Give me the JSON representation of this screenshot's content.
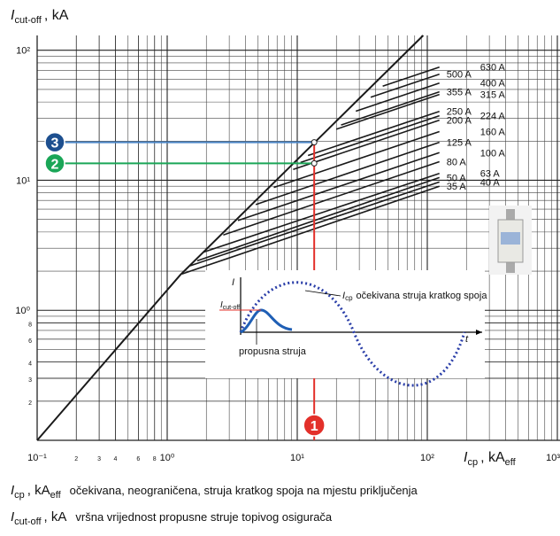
{
  "chart_data": {
    "type": "line",
    "log_x": true,
    "log_y": true,
    "grid": true,
    "minor_grid": true,
    "color": "#1a1a1a",
    "y_label": {
      "symbol": "I",
      "subscript": "cut-off",
      "unit": ", kA"
    },
    "x_label": {
      "symbol": "I",
      "subscript": "cp",
      "unit": ", kA",
      "unit_subscript": "eff"
    },
    "xlim": [
      0.1,
      1000
    ],
    "ylim": [
      0.1,
      130
    ],
    "xticks": [
      {
        "value": 0.1,
        "label": "10⁻¹"
      },
      {
        "value": 0.2,
        "label": "2"
      },
      {
        "value": 0.3,
        "label": "3"
      },
      {
        "value": 0.4,
        "label": "4"
      },
      {
        "value": 0.6,
        "label": "6"
      },
      {
        "value": 0.8,
        "label": "8"
      },
      {
        "value": 1,
        "label": "10⁰"
      },
      {
        "value": 10,
        "label": "10¹"
      },
      {
        "value": 100,
        "label": "10²"
      },
      {
        "value": 1000,
        "label": "10³"
      }
    ],
    "yticks": [
      {
        "value": 0.2,
        "label": "2"
      },
      {
        "value": 0.3,
        "label": "3"
      },
      {
        "value": 0.4,
        "label": "4"
      },
      {
        "value": 0.6,
        "label": "6"
      },
      {
        "value": 0.8,
        "label": "8"
      },
      {
        "value": 1,
        "label": "10⁰"
      },
      {
        "value": 10,
        "label": "10¹"
      },
      {
        "value": 100,
        "label": "10²"
      }
    ],
    "envelope": {
      "x": [
        0.1,
        1.26,
        93
      ],
      "values": [
        0.1,
        1.87,
        130
      ]
    },
    "series": [
      {
        "name": "630 A",
        "x": [
          45.4,
          124
        ],
        "values": [
          52.9,
          74.3
        ]
      },
      {
        "name": "500 A",
        "x": [
          36.7,
          124
        ],
        "values": [
          43.5,
          65.5
        ]
      },
      {
        "name": "400 A",
        "x": [
          28.2,
          124
        ],
        "values": [
          34.0,
          56.0
        ]
      },
      {
        "name": "355 A",
        "x": [
          21.7,
          124
        ],
        "values": [
          26.6,
          47.9
        ]
      },
      {
        "name": "315 A",
        "x": [
          20.0,
          124
        ],
        "values": [
          24.7,
          45.7
        ]
      },
      {
        "name": "250 A",
        "x": [
          12.1,
          124
        ],
        "values": [
          15.5,
          33.9
        ]
      },
      {
        "name": "224 A",
        "x": [
          10.6,
          124
        ],
        "values": [
          13.7,
          31.4
        ]
      },
      {
        "name": "200 A",
        "x": [
          9.3,
          124
        ],
        "values": [
          12.1,
          29.0
        ]
      },
      {
        "name": "160 A",
        "x": [
          6.6,
          124
        ],
        "values": [
          8.8,
          23.7
        ]
      },
      {
        "name": "125 A",
        "x": [
          4.8,
          124
        ],
        "values": [
          6.5,
          19.6
        ]
      },
      {
        "name": "100 A",
        "x": [
          3.5,
          124
        ],
        "values": [
          4.9,
          16.3
        ]
      },
      {
        "name": "80 A",
        "x": [
          2.7,
          124
        ],
        "values": [
          3.8,
          13.9
        ]
      },
      {
        "name": "63 A",
        "x": [
          1.9,
          124
        ],
        "values": [
          2.8,
          11.3
        ]
      },
      {
        "name": "50 A",
        "x": [
          1.7,
          124
        ],
        "values": [
          2.4,
          10.5
        ]
      },
      {
        "name": "40 A",
        "x": [
          1.5,
          124
        ],
        "values": [
          2.2,
          9.7
        ]
      },
      {
        "name": "35 A",
        "x": [
          1.3,
          124
        ],
        "values": [
          1.9,
          9.0
        ]
      }
    ],
    "guides": [
      {
        "label": "1",
        "x": 13.5,
        "color": "#e3302a",
        "line_color": "#e3302a"
      },
      {
        "label": "2",
        "y": 13.5,
        "color": "#1aa657",
        "line_color": "#1aa657"
      },
      {
        "label": "3",
        "y": 19.6,
        "color": "#1d4f8f",
        "line_color": "#4c87c7"
      }
    ],
    "inset": {
      "y_axis": "I",
      "x_axis": "t",
      "peak_label": {
        "symbol": "I",
        "subscript": "cut-off"
      },
      "prospective_label": {
        "symbol": "I",
        "subscript": "cp",
        "text": "očekivana struja kratkog spoja"
      },
      "let_through_label": "propusna struja"
    },
    "notes": [
      {
        "symbol": "I",
        "subscript": "cp",
        "unit": ", kA",
        "unit_subscript": "eff",
        "text": "očekivana, neograničena, struja kratkog spoja na mjestu priključenja"
      },
      {
        "symbol": "I",
        "subscript": "cut-off",
        "unit": ", kA",
        "text": "vršna vrijednost propusne struje topivog osigurača"
      }
    ]
  }
}
